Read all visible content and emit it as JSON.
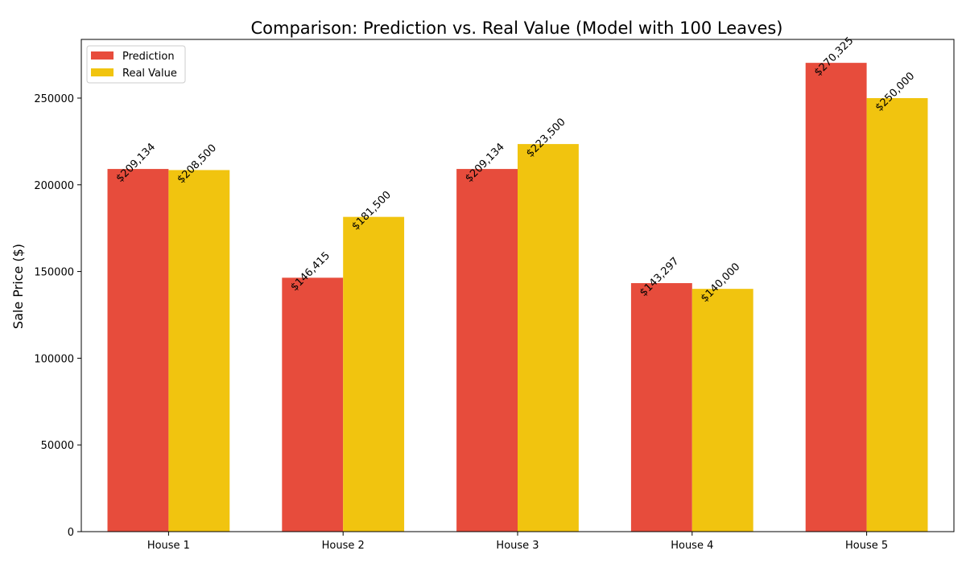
{
  "chart_data": {
    "type": "bar",
    "title": "Comparison: Prediction vs. Real Value (Model with 100 Leaves)",
    "xlabel": "",
    "ylabel": "Sale Price ($)",
    "categories": [
      "House 1",
      "House 2",
      "House 3",
      "House 4",
      "House 5"
    ],
    "series": [
      {
        "name": "Prediction",
        "color": "#e74c3c",
        "values": [
          209134,
          146415,
          209134,
          143297,
          270325
        ],
        "labels": [
          "$209,134",
          "$146,415",
          "$209,134",
          "$143,297",
          "$270,325"
        ]
      },
      {
        "name": "Real Value",
        "color": "#f1c40f",
        "values": [
          208500,
          181500,
          223500,
          140000,
          250000
        ],
        "labels": [
          "$208,500",
          "$181,500",
          "$223,500",
          "$140,000",
          "$250,000"
        ]
      }
    ],
    "ylim": [
      0,
      283841
    ],
    "yticks": [
      0,
      50000,
      100000,
      150000,
      200000,
      250000
    ],
    "ytick_labels": [
      "0",
      "50000",
      "100000",
      "150000",
      "200000",
      "250000"
    ],
    "grid": false,
    "legend_position": "top-left"
  }
}
